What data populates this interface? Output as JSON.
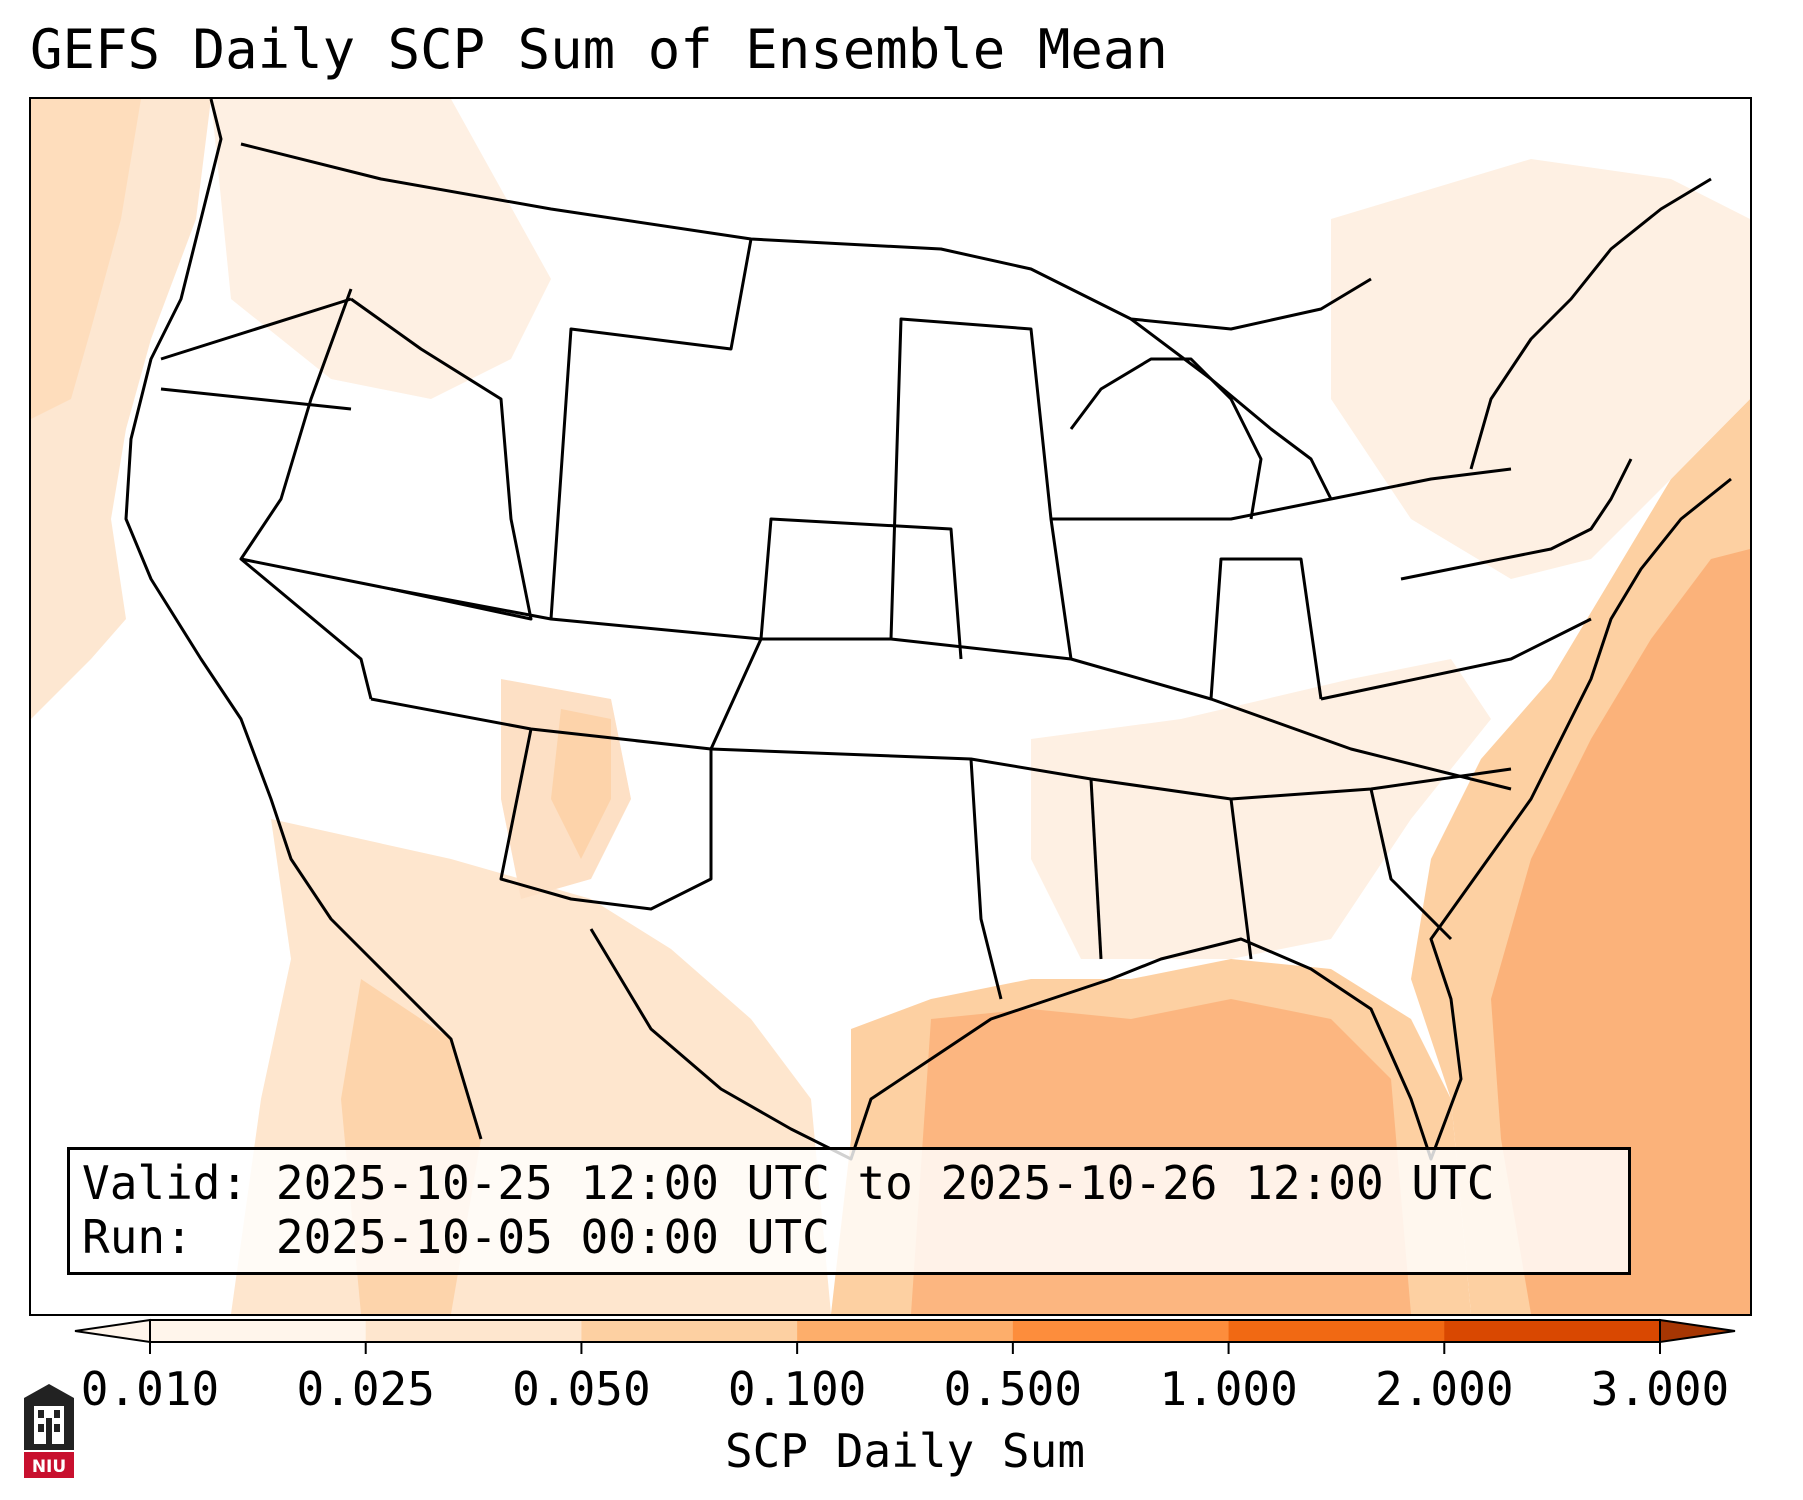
{
  "title": "GEFS Daily SCP Sum of Ensemble Mean",
  "info": {
    "valid_label": "Valid:",
    "valid_value": "2025-10-25 12:00 UTC to 2025-10-26 12:00 UTC",
    "run_label": "Run:",
    "run_value": "2025-10-05 00:00 UTC"
  },
  "colorbar": {
    "label": "SCP Daily Sum",
    "ticks": [
      "0.010",
      "0.025",
      "0.050",
      "0.100",
      "0.500",
      "1.000",
      "2.000",
      "3.000"
    ],
    "colors": [
      "#fff5eb",
      "#fee6ce",
      "#fdd0a2",
      "#fdae6b",
      "#fd8d3c",
      "#f16913",
      "#d94801",
      "#a63603"
    ],
    "extend": "both"
  },
  "logo": {
    "text": "NIU",
    "color": "#c8102e"
  },
  "map": {
    "region": "Continental United States",
    "shading_levels": [
      "0.010",
      "0.025",
      "0.050",
      "0.100",
      "0.500"
    ],
    "note_colors": {
      "light": "#fef0e3",
      "pale": "#fde0c5",
      "mid": "#fdd0a2",
      "high": "#fbb27a"
    }
  }
}
